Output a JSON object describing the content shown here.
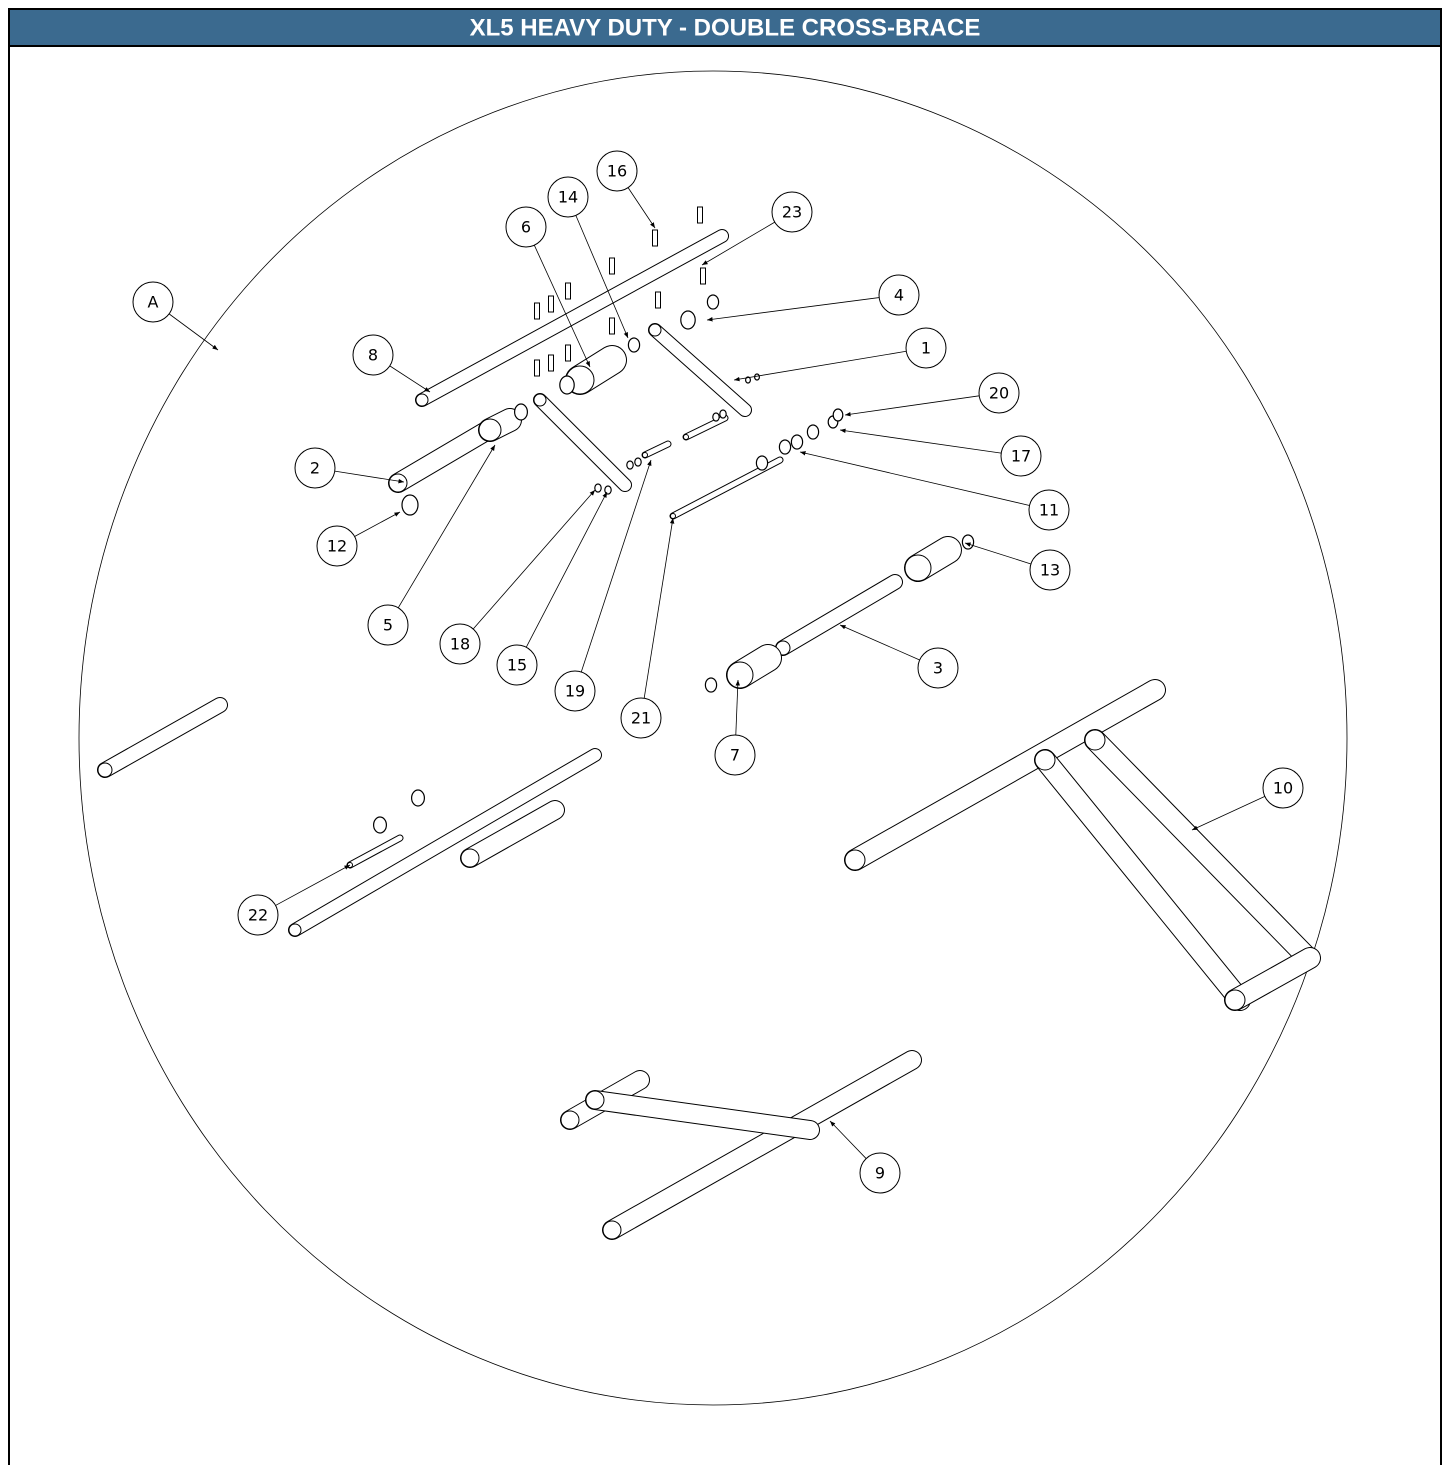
{
  "header": {
    "title": "XL5 HEAVY DUTY - DOUBLE CROSS-BRACE"
  },
  "callouts": [
    "A",
    "16",
    "14",
    "6",
    "23",
    "4",
    "8",
    "1",
    "20",
    "2",
    "17",
    "11",
    "12",
    "13",
    "5",
    "18",
    "15",
    "19",
    "21",
    "3",
    "7",
    "10",
    "22",
    "9"
  ]
}
